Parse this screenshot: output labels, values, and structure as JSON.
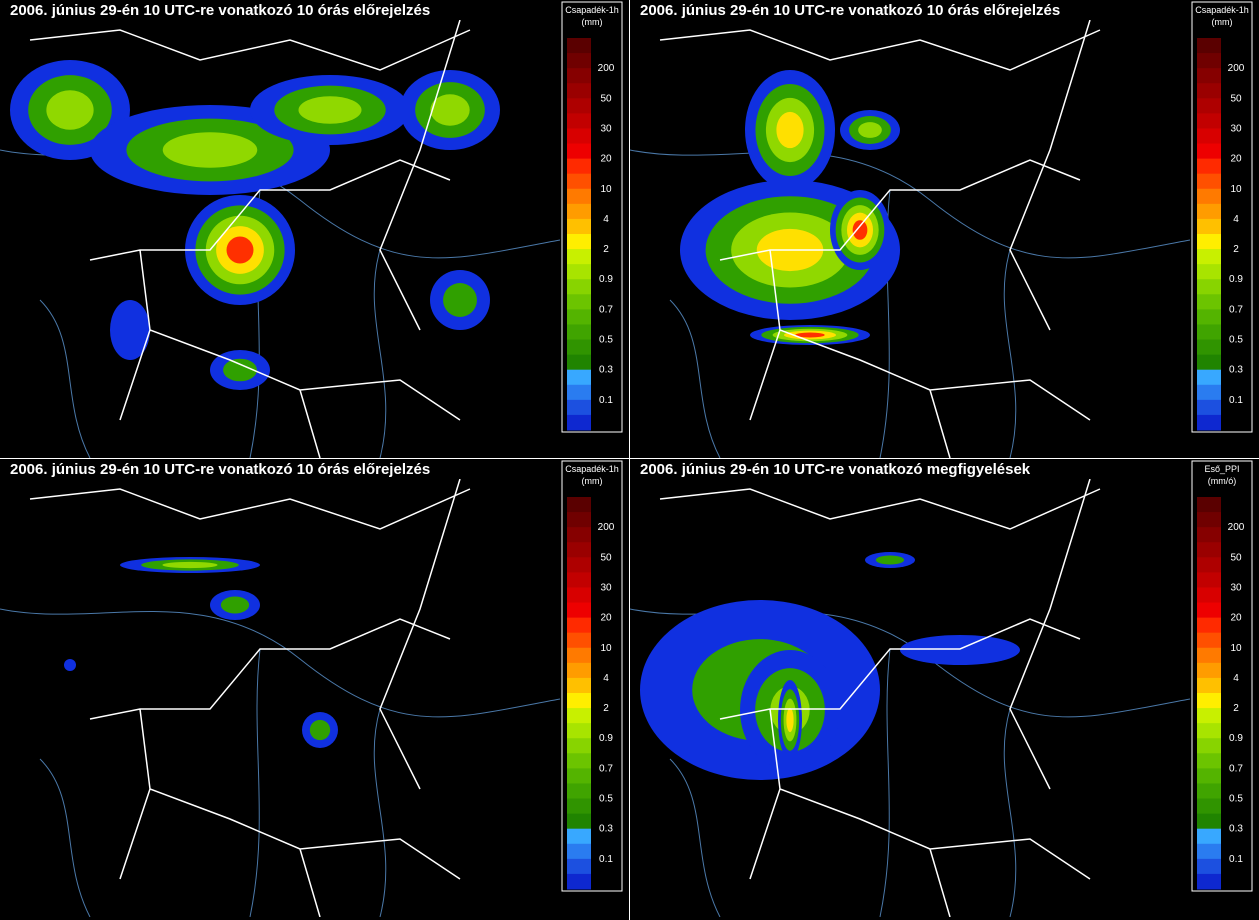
{
  "panels": [
    {
      "title": "2006. június 29-én 10 UTC-re vonatkozó 10 órás előrejelzés",
      "legend": {
        "title": "Csapadék-1h",
        "unit": "(mm)",
        "labels": [
          "200",
          "50",
          "30",
          "20",
          "10",
          "4",
          "2",
          "0.9",
          "0.7",
          "0.5",
          "0.3",
          "0.1"
        ]
      }
    },
    {
      "title": "2006. június 29-én 10 UTC-re vonatkozó 10 órás előrejelzés",
      "legend": {
        "title": "Csapadék-1h",
        "unit": "(mm)",
        "labels": [
          "200",
          "50",
          "30",
          "20",
          "10",
          "4",
          "2",
          "0.9",
          "0.7",
          "0.5",
          "0.3",
          "0.1"
        ]
      }
    },
    {
      "title": "2006. június 29-én 10 UTC-re vonatkozó 10 órás előrejelzés",
      "legend": {
        "title": "Csapadék-1h",
        "unit": "(mm)",
        "labels": [
          "200",
          "50",
          "30",
          "20",
          "10",
          "4",
          "2",
          "0.9",
          "0.7",
          "0.5",
          "0.3",
          "0.1"
        ]
      }
    },
    {
      "title": "2006. június 29-én 10 UTC-re vonatkozó megfigyelések",
      "legend": {
        "title": "Eső_PPI",
        "unit": "(mm/ó)",
        "labels": [
          "200",
          "50",
          "30",
          "20",
          "10",
          "4",
          "2",
          "0.9",
          "0.7",
          "0.5",
          "0.3",
          "0.1"
        ]
      }
    }
  ],
  "scale_colors": [
    "#5a0000",
    "#700000",
    "#860000",
    "#9a0000",
    "#ae0000",
    "#c20000",
    "#d80000",
    "#ee0000",
    "#ff2a00",
    "#ff5000",
    "#ff7a00",
    "#ff9c00",
    "#ffc000",
    "#ffee00",
    "#c8f000",
    "#a8e400",
    "#88d400",
    "#6cc400",
    "#54b400",
    "#40a400",
    "#309400",
    "#208400",
    "#38a8ff",
    "#2a7cf0",
    "#1c50e0",
    "#0e28d0"
  ]
}
